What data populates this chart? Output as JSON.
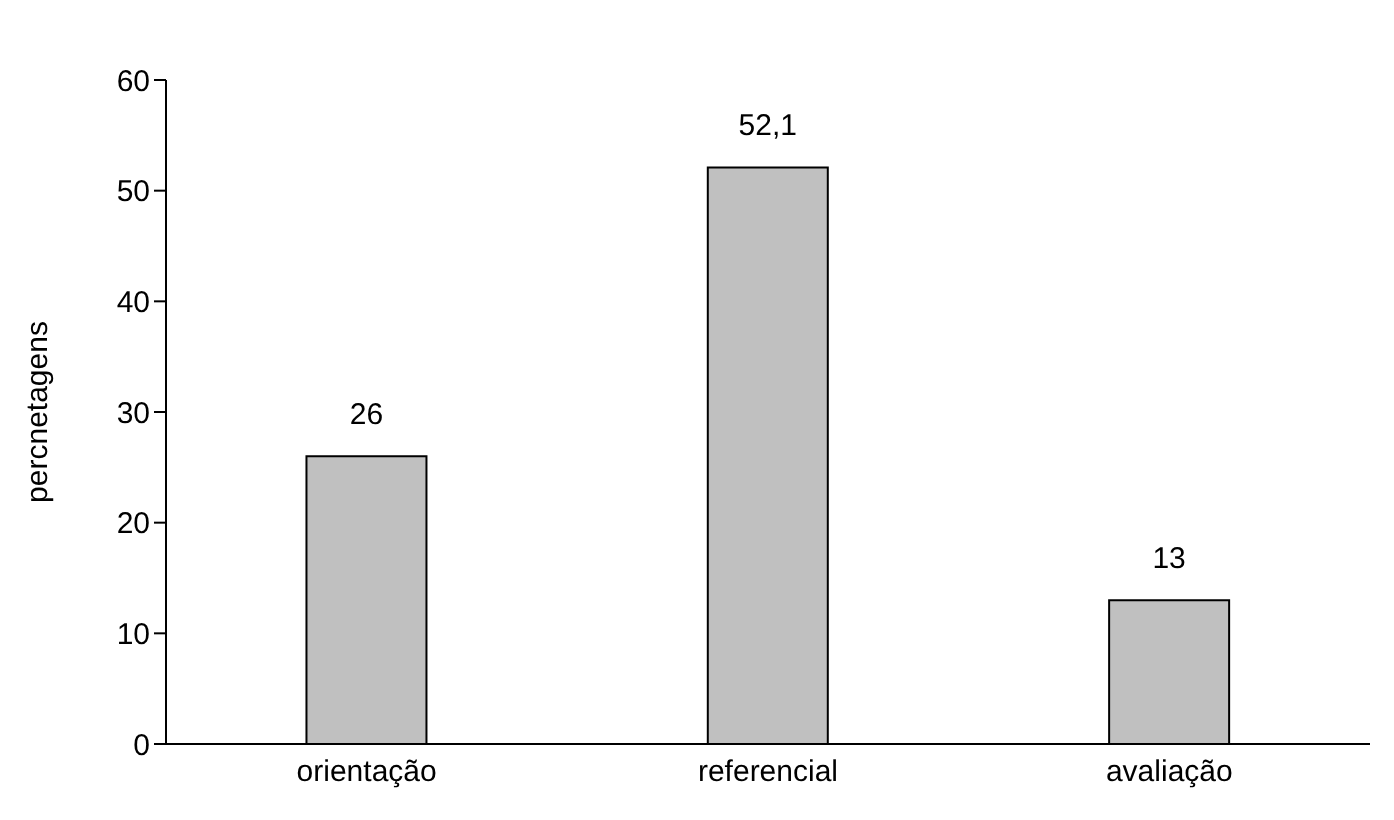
{
  "chart_data": {
    "type": "bar",
    "ylabel": "percnetagens",
    "categories": [
      "orientação",
      "referencial",
      "avaliação"
    ],
    "values": [
      26,
      52.1,
      13
    ],
    "value_labels": [
      "26",
      "52,1",
      "13"
    ],
    "color": "#c0c0c0",
    "ylim": [
      0,
      60
    ],
    "yticks": [
      0,
      10,
      20,
      30,
      40,
      50,
      60
    ],
    "grid": false,
    "legend": false
  }
}
